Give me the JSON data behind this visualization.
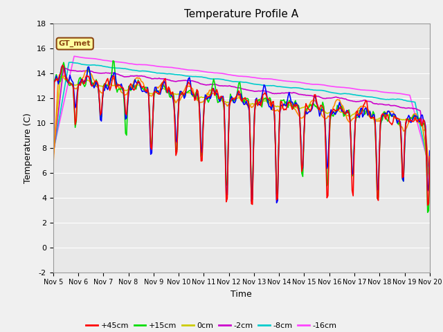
{
  "title": "Temperature Profile A",
  "xlabel": "Time",
  "ylabel": "Temperature (C)",
  "ylim": [
    -2,
    18
  ],
  "background_color": "#e8e8e8",
  "fig_bg": "#f0f0f0",
  "series_colors": {
    "+45cm": "#ff0000",
    "+30cm": "#0000ff",
    "+15cm": "#00dd00",
    "+5cm": "#ff8800",
    "0cm": "#cccc00",
    "-2cm": "#cc00cc",
    "-8cm": "#00cccc",
    "-16cm": "#ff44ff"
  },
  "legend_label": "GT_met",
  "tick_labels": [
    "Nov 5",
    "Nov 6",
    "Nov 7",
    "Nov 8",
    "Nov 9",
    "Nov 10",
    "Nov 11",
    "Nov 12",
    "Nov 13",
    "Nov 14",
    "Nov 15",
    "Nov 16",
    "Nov 17",
    "Nov 18",
    "Nov 19",
    "Nov 20"
  ],
  "yticks": [
    -2,
    0,
    2,
    4,
    6,
    8,
    10,
    12,
    14,
    16,
    18
  ]
}
